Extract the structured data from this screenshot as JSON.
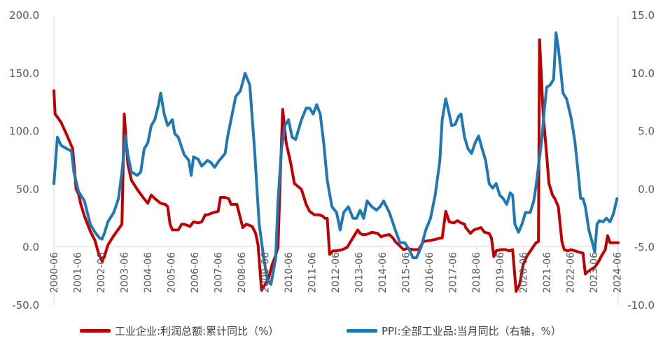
{
  "chart_data": {
    "type": "line",
    "title": "",
    "xlabel": "",
    "ylabel": "",
    "x_tick_labels": [
      "2000-06",
      "2001-06",
      "2002-06",
      "2003-06",
      "2004-06",
      "2005-06",
      "2006-06",
      "2007-06",
      "2008-06",
      "2009-06",
      "2010-06",
      "2011-06",
      "2012-06",
      "2013-06",
      "2014-06",
      "2015-06",
      "2016-06",
      "2017-06",
      "2018-06",
      "2019-06",
      "2020-06",
      "2021-06",
      "2022-06",
      "2023-06",
      "2024-06"
    ],
    "y_left": {
      "lim": [
        -50,
        200
      ],
      "ticks": [
        "-50.0",
        "0.0",
        "50.0",
        "100.0",
        "150.0",
        "200.0"
      ]
    },
    "y_right": {
      "lim": [
        -10,
        15
      ],
      "ticks": [
        "-10.0",
        "-5.0",
        "0.0",
        "5.0",
        "10.0",
        "15.0"
      ]
    },
    "legend_position": "bottom",
    "series": [
      {
        "name": "工业企业:利润总额:累计同比（%）",
        "axis": "left",
        "color": "#C00000",
        "points": [
          [
            2000.45,
            135
          ],
          [
            2000.5,
            115
          ],
          [
            2000.75,
            108
          ],
          [
            2001.0,
            97
          ],
          [
            2001.25,
            85
          ],
          [
            2001.4,
            50
          ],
          [
            2001.5,
            46
          ],
          [
            2001.6,
            37
          ],
          [
            2001.75,
            27
          ],
          [
            2002.0,
            14
          ],
          [
            2002.2,
            6
          ],
          [
            2002.35,
            -5
          ],
          [
            2002.5,
            -12
          ],
          [
            2002.6,
            -8
          ],
          [
            2002.75,
            2
          ],
          [
            2003.0,
            10
          ],
          [
            2003.25,
            17
          ],
          [
            2003.35,
            20
          ],
          [
            2003.45,
            115
          ],
          [
            2003.6,
            72
          ],
          [
            2003.75,
            58
          ],
          [
            2004.0,
            50
          ],
          [
            2004.25,
            43
          ],
          [
            2004.45,
            38
          ],
          [
            2004.6,
            45
          ],
          [
            2004.75,
            42
          ],
          [
            2005.0,
            38
          ],
          [
            2005.2,
            37
          ],
          [
            2005.3,
            35
          ],
          [
            2005.4,
            20
          ],
          [
            2005.5,
            15
          ],
          [
            2005.75,
            15
          ],
          [
            2005.9,
            20
          ],
          [
            2006.0,
            20
          ],
          [
            2006.25,
            18
          ],
          [
            2006.4,
            22
          ],
          [
            2006.6,
            21
          ],
          [
            2006.75,
            22
          ],
          [
            2006.9,
            28
          ],
          [
            2007.0,
            28
          ],
          [
            2007.25,
            30
          ],
          [
            2007.45,
            31
          ],
          [
            2007.55,
            43
          ],
          [
            2007.75,
            43
          ],
          [
            2007.9,
            42
          ],
          [
            2008.0,
            37
          ],
          [
            2008.25,
            37
          ],
          [
            2008.4,
            25
          ],
          [
            2008.5,
            17
          ],
          [
            2008.65,
            20
          ],
          [
            2008.9,
            18
          ],
          [
            2009.05,
            12
          ],
          [
            2009.15,
            2
          ],
          [
            2009.3,
            -37
          ],
          [
            2009.45,
            -32
          ],
          [
            2009.6,
            -27
          ],
          [
            2009.75,
            -15
          ],
          [
            2009.9,
            -7
          ],
          [
            2010.0,
            0
          ],
          [
            2010.1,
            62
          ],
          [
            2010.2,
            119
          ],
          [
            2010.35,
            90
          ],
          [
            2010.55,
            72
          ],
          [
            2010.7,
            55
          ],
          [
            2011.0,
            50
          ],
          [
            2011.2,
            37
          ],
          [
            2011.35,
            31
          ],
          [
            2011.55,
            28
          ],
          [
            2011.75,
            28
          ],
          [
            2011.9,
            27
          ],
          [
            2012.0,
            25
          ],
          [
            2012.1,
            25
          ],
          [
            2012.2,
            -6
          ],
          [
            2012.35,
            -3
          ],
          [
            2012.5,
            -3
          ],
          [
            2012.75,
            -2
          ],
          [
            2012.95,
            0
          ],
          [
            2013.1,
            5
          ],
          [
            2013.25,
            10
          ],
          [
            2013.4,
            15
          ],
          [
            2013.5,
            12
          ],
          [
            2013.6,
            11
          ],
          [
            2013.75,
            11
          ],
          [
            2013.9,
            12
          ],
          [
            2014.0,
            13
          ],
          [
            2014.25,
            12
          ],
          [
            2014.4,
            9
          ],
          [
            2014.5,
            10
          ],
          [
            2014.75,
            11
          ],
          [
            2014.9,
            8
          ],
          [
            2015.0,
            5
          ],
          [
            2015.2,
            1
          ],
          [
            2015.35,
            -2
          ],
          [
            2015.5,
            -1
          ],
          [
            2015.75,
            -2
          ],
          [
            2015.9,
            -2
          ],
          [
            2016.0,
            -2
          ],
          [
            2016.2,
            5
          ],
          [
            2016.5,
            6
          ],
          [
            2016.75,
            7
          ],
          [
            2016.9,
            8
          ],
          [
            2017.0,
            8
          ],
          [
            2017.15,
            31
          ],
          [
            2017.3,
            22
          ],
          [
            2017.5,
            21
          ],
          [
            2017.65,
            23
          ],
          [
            2017.8,
            21
          ],
          [
            2017.95,
            20
          ],
          [
            2018.0,
            17
          ],
          [
            2018.2,
            12
          ],
          [
            2018.35,
            15
          ],
          [
            2018.5,
            16
          ],
          [
            2018.65,
            17
          ],
          [
            2018.8,
            13
          ],
          [
            2019.0,
            12
          ],
          [
            2019.1,
            8
          ],
          [
            2019.2,
            -8
          ],
          [
            2019.3,
            -3
          ],
          [
            2019.5,
            -2
          ],
          [
            2019.7,
            -2
          ],
          [
            2019.85,
            -3
          ],
          [
            2020.0,
            -2
          ],
          [
            2020.15,
            -38
          ],
          [
            2020.3,
            -32
          ],
          [
            2020.45,
            -15
          ],
          [
            2020.6,
            -8
          ],
          [
            2020.8,
            -2
          ],
          [
            2021.0,
            4
          ],
          [
            2021.1,
            5
          ],
          [
            2021.15,
            179
          ],
          [
            2021.3,
            115
          ],
          [
            2021.45,
            80
          ],
          [
            2021.55,
            55
          ],
          [
            2021.7,
            45
          ],
          [
            2021.8,
            42
          ],
          [
            2021.95,
            35
          ],
          [
            2022.1,
            5
          ],
          [
            2022.2,
            -2
          ],
          [
            2022.35,
            -3
          ],
          [
            2022.5,
            -2
          ],
          [
            2022.65,
            -3
          ],
          [
            2022.8,
            -4
          ],
          [
            2023.0,
            -5
          ],
          [
            2023.1,
            -23
          ],
          [
            2023.2,
            -21
          ],
          [
            2023.35,
            -19
          ],
          [
            2023.5,
            -17
          ],
          [
            2023.65,
            -13
          ],
          [
            2023.8,
            -7
          ],
          [
            2023.95,
            -2
          ],
          [
            2024.05,
            10
          ],
          [
            2024.15,
            4
          ],
          [
            2024.3,
            4
          ],
          [
            2024.5,
            4
          ]
        ]
      },
      {
        "name": "PPI:全部工业品:当月同比（右轴，%）",
        "axis": "right",
        "color": "#1F77B4",
        "points": [
          [
            2000.45,
            0.5
          ],
          [
            2000.6,
            4.5
          ],
          [
            2000.75,
            3.8
          ],
          [
            2001.0,
            3.5
          ],
          [
            2001.2,
            3.3
          ],
          [
            2001.3,
            1.5
          ],
          [
            2001.5,
            -0.2
          ],
          [
            2001.75,
            -1.0
          ],
          [
            2002.0,
            -3.0
          ],
          [
            2002.2,
            -3.7
          ],
          [
            2002.4,
            -4.2
          ],
          [
            2002.5,
            -4.3
          ],
          [
            2002.6,
            -3.8
          ],
          [
            2002.75,
            -2.8
          ],
          [
            2003.0,
            -2.0
          ],
          [
            2003.2,
            -0.8
          ],
          [
            2003.35,
            1.5
          ],
          [
            2003.5,
            4.6
          ],
          [
            2003.6,
            3.0
          ],
          [
            2003.75,
            1.5
          ],
          [
            2004.0,
            1.2
          ],
          [
            2004.15,
            1.5
          ],
          [
            2004.3,
            3.5
          ],
          [
            2004.45,
            4.0
          ],
          [
            2004.6,
            5.5
          ],
          [
            2004.75,
            6.0
          ],
          [
            2004.9,
            7.2
          ],
          [
            2005.0,
            8.3
          ],
          [
            2005.15,
            6.5
          ],
          [
            2005.3,
            5.5
          ],
          [
            2005.5,
            6.0
          ],
          [
            2005.6,
            4.8
          ],
          [
            2005.75,
            4.5
          ],
          [
            2006.0,
            3.0
          ],
          [
            2006.2,
            2.5
          ],
          [
            2006.3,
            1.2
          ],
          [
            2006.4,
            2.8
          ],
          [
            2006.6,
            2.6
          ],
          [
            2006.75,
            2.0
          ],
          [
            2007.0,
            2.5
          ],
          [
            2007.15,
            2.3
          ],
          [
            2007.3,
            1.9
          ],
          [
            2007.5,
            2.5
          ],
          [
            2007.75,
            3.1
          ],
          [
            2007.85,
            4.5
          ],
          [
            2008.0,
            6.0
          ],
          [
            2008.2,
            8.0
          ],
          [
            2008.4,
            8.5
          ],
          [
            2008.6,
            10.0
          ],
          [
            2008.8,
            9.0
          ],
          [
            2009.0,
            3.5
          ],
          [
            2009.2,
            -3.0
          ],
          [
            2009.4,
            -6.0
          ],
          [
            2009.55,
            -7.8
          ],
          [
            2009.7,
            -8.2
          ],
          [
            2009.9,
            -6.0
          ],
          [
            2010.0,
            -1.0
          ],
          [
            2010.15,
            3.5
          ],
          [
            2010.3,
            5.5
          ],
          [
            2010.45,
            6.0
          ],
          [
            2010.6,
            4.5
          ],
          [
            2010.75,
            4.3
          ],
          [
            2011.0,
            6.0
          ],
          [
            2011.2,
            7.0
          ],
          [
            2011.35,
            7.0
          ],
          [
            2011.5,
            6.5
          ],
          [
            2011.65,
            7.3
          ],
          [
            2011.8,
            6.5
          ],
          [
            2011.95,
            4.0
          ],
          [
            2012.1,
            0.8
          ],
          [
            2012.3,
            -1.5
          ],
          [
            2012.5,
            -2.0
          ],
          [
            2012.65,
            -3.5
          ],
          [
            2012.8,
            -2.0
          ],
          [
            2013.0,
            -1.5
          ],
          [
            2013.2,
            -2.5
          ],
          [
            2013.35,
            -2.5
          ],
          [
            2013.5,
            -1.8
          ],
          [
            2013.65,
            -2.5
          ],
          [
            2013.8,
            -1.0
          ],
          [
            2014.0,
            -1.5
          ],
          [
            2014.2,
            -1.8
          ],
          [
            2014.35,
            -1.5
          ],
          [
            2014.5,
            -1.0
          ],
          [
            2014.75,
            -2.0
          ],
          [
            2015.0,
            -3.5
          ],
          [
            2015.2,
            -4.6
          ],
          [
            2015.4,
            -4.6
          ],
          [
            2015.6,
            -5.2
          ],
          [
            2015.75,
            -5.9
          ],
          [
            2015.9,
            -5.9
          ],
          [
            2016.1,
            -5.0
          ],
          [
            2016.3,
            -3.5
          ],
          [
            2016.5,
            -2.5
          ],
          [
            2016.7,
            -0.5
          ],
          [
            2016.9,
            2.5
          ],
          [
            2017.0,
            6.0
          ],
          [
            2017.15,
            7.8
          ],
          [
            2017.3,
            6.5
          ],
          [
            2017.4,
            5.5
          ],
          [
            2017.55,
            5.6
          ],
          [
            2017.7,
            6.3
          ],
          [
            2017.8,
            6.5
          ],
          [
            2017.95,
            4.5
          ],
          [
            2018.1,
            3.5
          ],
          [
            2018.25,
            3.1
          ],
          [
            2018.4,
            4.0
          ],
          [
            2018.55,
            4.6
          ],
          [
            2018.7,
            3.5
          ],
          [
            2018.85,
            2.5
          ],
          [
            2019.0,
            0.5
          ],
          [
            2019.15,
            0.1
          ],
          [
            2019.3,
            0.5
          ],
          [
            2019.45,
            -0.5
          ],
          [
            2019.6,
            -0.8
          ],
          [
            2019.75,
            -1.3
          ],
          [
            2019.9,
            -0.3
          ],
          [
            2020.0,
            -0.5
          ],
          [
            2020.1,
            -3.0
          ],
          [
            2020.25,
            -3.7
          ],
          [
            2020.4,
            -3.0
          ],
          [
            2020.55,
            -2.0
          ],
          [
            2020.75,
            -2.0
          ],
          [
            2020.9,
            -1.0
          ],
          [
            2021.0,
            0.3
          ],
          [
            2021.1,
            2.0
          ],
          [
            2021.25,
            4.4
          ],
          [
            2021.35,
            6.8
          ],
          [
            2021.45,
            8.8
          ],
          [
            2021.6,
            9.0
          ],
          [
            2021.75,
            9.5
          ],
          [
            2021.85,
            13.5
          ],
          [
            2021.95,
            12.2
          ],
          [
            2022.05,
            10.3
          ],
          [
            2022.15,
            8.3
          ],
          [
            2022.3,
            7.8
          ],
          [
            2022.5,
            6.1
          ],
          [
            2022.65,
            4.2
          ],
          [
            2022.75,
            2.3
          ],
          [
            2022.9,
            -0.8
          ],
          [
            2023.0,
            -0.8
          ],
          [
            2023.1,
            -1.5
          ],
          [
            2023.25,
            -3.5
          ],
          [
            2023.4,
            -4.6
          ],
          [
            2023.5,
            -5.4
          ],
          [
            2023.6,
            -3.0
          ],
          [
            2023.7,
            -2.7
          ],
          [
            2023.85,
            -2.8
          ],
          [
            2024.0,
            -2.5
          ],
          [
            2024.15,
            -2.8
          ],
          [
            2024.3,
            -2.1
          ],
          [
            2024.45,
            -0.8
          ]
        ]
      }
    ]
  }
}
